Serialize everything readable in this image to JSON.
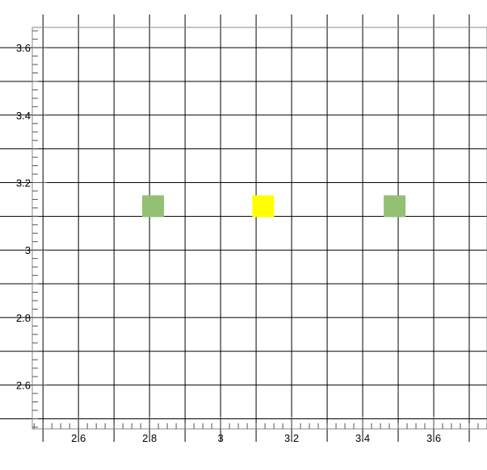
{
  "chart_data": {
    "type": "scatter",
    "title": "",
    "xlabel": "",
    "ylabel": "",
    "xlim": [
      2.47,
      3.75
    ],
    "ylim": [
      2.47,
      3.66
    ],
    "grid": true,
    "x_ticks": [
      2.6,
      2.8,
      3,
      3.2,
      3.4,
      3.6
    ],
    "x_tick_labels": [
      "2.6",
      "2.8",
      "3",
      "3.2",
      "3.4",
      "3.6"
    ],
    "y_ticks": [
      2.6,
      2.8,
      3,
      3.2,
      3.4,
      3.6
    ],
    "y_tick_labels": [
      "2.6",
      "2.8",
      "3",
      "3.2",
      "3.4",
      "3.6"
    ],
    "marker": "square",
    "points": [
      {
        "x": 2.81,
        "y": 3.13,
        "color": "#93c073"
      },
      {
        "x": 3.12,
        "y": 3.13,
        "color": "#ffff00"
      },
      {
        "x": 3.49,
        "y": 3.13,
        "color": "#93c073"
      }
    ]
  }
}
